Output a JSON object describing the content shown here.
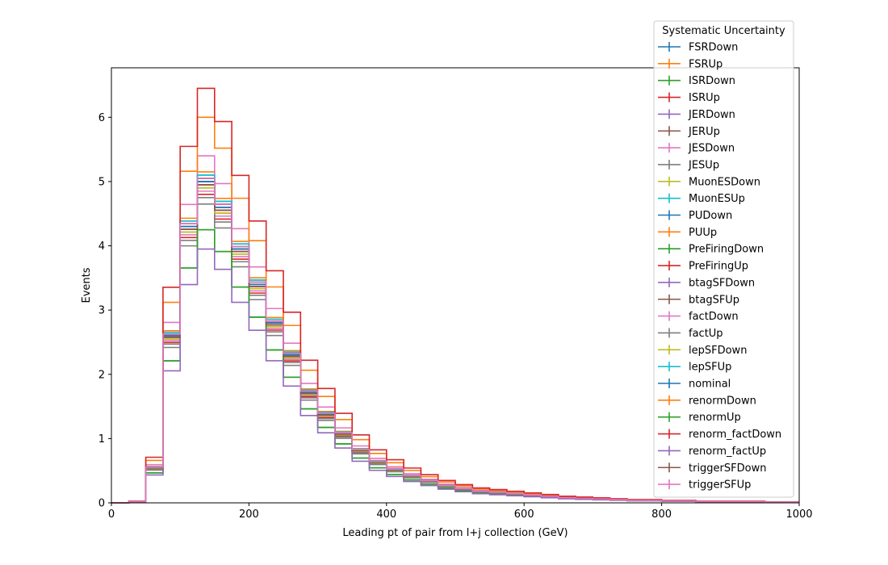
{
  "chart_data": {
    "type": "line",
    "style": "step-histogram",
    "xlabel": "Leading pt of pair from l+j collection (GeV)",
    "ylabel": "Events",
    "xlim": [
      0,
      1000
    ],
    "ylim": [
      0,
      6.77
    ],
    "x_ticks": [
      0,
      200,
      400,
      600,
      800,
      1000
    ],
    "y_ticks": [
      0,
      1,
      2,
      3,
      4,
      5,
      6
    ],
    "grid": false,
    "legend_title": "Systematic Uncertainty",
    "legend_placement": "upper right, outside top",
    "bin_edges": [
      0,
      25,
      50,
      75,
      100,
      125,
      150,
      175,
      200,
      225,
      250,
      275,
      300,
      325,
      350,
      375,
      400,
      425,
      450,
      475,
      500,
      525,
      550,
      575,
      600,
      625,
      650,
      675,
      700,
      725,
      750,
      775,
      800,
      825,
      850,
      875,
      900,
      925,
      950,
      975,
      1000
    ],
    "nominal": [
      0,
      0.02,
      0.55,
      2.6,
      4.3,
      5.0,
      4.6,
      3.95,
      3.4,
      2.8,
      2.3,
      1.72,
      1.38,
      1.08,
      0.82,
      0.64,
      0.52,
      0.42,
      0.34,
      0.27,
      0.22,
      0.18,
      0.16,
      0.14,
      0.12,
      0.1,
      0.08,
      0.07,
      0.06,
      0.05,
      0.04,
      0.04,
      0.03,
      0.03,
      0.02,
      0.02,
      0.02,
      0.02,
      0.01,
      0.01
    ],
    "series": [
      {
        "name": "FSRDown",
        "color": "#1f77b4",
        "scale": 1.0
      },
      {
        "name": "FSRUp",
        "color": "#ff7f0e",
        "scale": 1.03
      },
      {
        "name": "ISRDown",
        "color": "#2ca02c",
        "scale": 0.85
      },
      {
        "name": "ISRUp",
        "color": "#d62728",
        "scale": 1.0
      },
      {
        "name": "JERDown",
        "color": "#9467bd",
        "scale": 1.0
      },
      {
        "name": "JERUp",
        "color": "#8c564b",
        "scale": 0.99
      },
      {
        "name": "JESDown",
        "color": "#e377c2",
        "scale": 0.97
      },
      {
        "name": "JESUp",
        "color": "#7f7f7f",
        "scale": 0.93
      },
      {
        "name": "MuonESDown",
        "color": "#bcbd22",
        "scale": 0.98
      },
      {
        "name": "MuonESUp",
        "color": "#17becf",
        "scale": 1.02
      },
      {
        "name": "PUDown",
        "color": "#1f77b4",
        "scale": 1.01
      },
      {
        "name": "PUUp",
        "color": "#ff7f0e",
        "scale": 0.99
      },
      {
        "name": "PreFiringDown",
        "color": "#2ca02c",
        "scale": 1.01
      },
      {
        "name": "PreFiringUp",
        "color": "#d62728",
        "scale": 0.96
      },
      {
        "name": "btagSFDown",
        "color": "#9467bd",
        "scale": 0.99
      },
      {
        "name": "btagSFUp",
        "color": "#8c564b",
        "scale": 1.01
      },
      {
        "name": "factDown",
        "color": "#e377c2",
        "scale": 1.08
      },
      {
        "name": "factUp",
        "color": "#7f7f7f",
        "scale": 0.95
      },
      {
        "name": "lepSFDown",
        "color": "#bcbd22",
        "scale": 0.98
      },
      {
        "name": "lepSFUp",
        "color": "#17becf",
        "scale": 1.02
      },
      {
        "name": "nominal",
        "color": "#1f77b4",
        "scale": 1.0
      },
      {
        "name": "renormDown",
        "color": "#ff7f0e",
        "scale": 1.2
      },
      {
        "name": "renormUp",
        "color": "#2ca02c",
        "scale": 0.85
      },
      {
        "name": "renorm_factDown",
        "color": "#d62728",
        "scale": 1.29
      },
      {
        "name": "renorm_factUp",
        "color": "#9467bd",
        "scale": 0.79
      },
      {
        "name": "triggerSFDown",
        "color": "#8c564b",
        "scale": 0.99
      },
      {
        "name": "triggerSFUp",
        "color": "#e377c2",
        "scale": 1.01
      }
    ]
  }
}
